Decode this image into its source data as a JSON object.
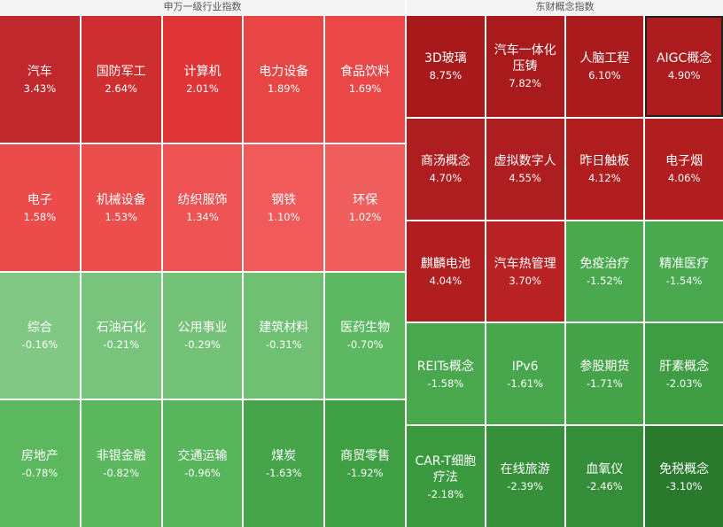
{
  "panels": [
    {
      "title": "申万一级行业指数",
      "columns": 5,
      "tiles": [
        {
          "name": "汽车",
          "change": "3.43%",
          "color": "#c0282d"
        },
        {
          "name": "国防军工",
          "change": "2.64%",
          "color": "#cf2e30"
        },
        {
          "name": "计算机",
          "change": "2.01%",
          "color": "#e03536"
        },
        {
          "name": "电力设备",
          "change": "1.89%",
          "color": "#e84545"
        },
        {
          "name": "食品饮料",
          "change": "1.69%",
          "color": "#ea4848"
        },
        {
          "name": "电子",
          "change": "1.58%",
          "color": "#ec4b4b"
        },
        {
          "name": "机械设备",
          "change": "1.53%",
          "color": "#ec4d4d"
        },
        {
          "name": "纺织服饰",
          "change": "1.34%",
          "color": "#ee5252"
        },
        {
          "name": "钢铁",
          "change": "1.10%",
          "color": "#f05a5a"
        },
        {
          "name": "环保",
          "change": "1.02%",
          "color": "#f05e5e"
        },
        {
          "name": "综合",
          "change": "-0.16%",
          "color": "#80c884"
        },
        {
          "name": "石油石化",
          "change": "-0.21%",
          "color": "#79c47d"
        },
        {
          "name": "公用事业",
          "change": "-0.29%",
          "color": "#73c277"
        },
        {
          "name": "建筑材料",
          "change": "-0.31%",
          "color": "#70c074"
        },
        {
          "name": "医药生物",
          "change": "-0.70%",
          "color": "#5db961"
        },
        {
          "name": "房地产",
          "change": "-0.78%",
          "color": "#5bb85f"
        },
        {
          "name": "非银金融",
          "change": "-0.82%",
          "color": "#5ab75e"
        },
        {
          "name": "交通运输",
          "change": "-0.96%",
          "color": "#57b55b"
        },
        {
          "name": "煤炭",
          "change": "-1.63%",
          "color": "#46a54a"
        },
        {
          "name": "商贸零售",
          "change": "-1.92%",
          "color": "#3f9f43"
        }
      ]
    },
    {
      "title": "东财概念指数",
      "columns": 4,
      "tiles": [
        {
          "name": "3D玻璃",
          "change": "8.75%",
          "color": "#a8191b"
        },
        {
          "name": "汽车一体化压铸",
          "change": "7.82%",
          "color": "#a81a1c"
        },
        {
          "name": "人脑工程",
          "change": "6.10%",
          "color": "#aa1b1d"
        },
        {
          "name": "AIGC概念",
          "change": "4.90%",
          "color": "#ac1c1e"
        },
        {
          "name": "商汤概念",
          "change": "4.70%",
          "color": "#ae1d1f"
        },
        {
          "name": "虚拟数字人",
          "change": "4.55%",
          "color": "#ae1d1f"
        },
        {
          "name": "昨日触板",
          "change": "4.12%",
          "color": "#b01e20"
        },
        {
          "name": "电子烟",
          "change": "4.06%",
          "color": "#b01e20"
        },
        {
          "name": "麒麟电池",
          "change": "4.04%",
          "color": "#b01e20"
        },
        {
          "name": "汽车热管理",
          "change": "3.70%",
          "color": "#b82224"
        },
        {
          "name": "免疫治疗",
          "change": "-1.52%",
          "color": "#4aa84e"
        },
        {
          "name": "精准医疗",
          "change": "-1.54%",
          "color": "#4aa84e"
        },
        {
          "name": "REITs概念",
          "change": "-1.58%",
          "color": "#49a74d"
        },
        {
          "name": "IPv6",
          "change": "-1.61%",
          "color": "#48a64c"
        },
        {
          "name": "参股期货",
          "change": "-1.71%",
          "color": "#45a449"
        },
        {
          "name": "肝素概念",
          "change": "-2.03%",
          "color": "#3e9c42"
        },
        {
          "name": "CAR-T细胞疗法",
          "change": "-2.18%",
          "color": "#3a983e"
        },
        {
          "name": "在线旅游",
          "change": "-2.39%",
          "color": "#36903a"
        },
        {
          "name": "血氧仪",
          "change": "-2.46%",
          "color": "#348d38"
        },
        {
          "name": "免税概念",
          "change": "-3.10%",
          "color": "#2a7a2e"
        }
      ]
    }
  ]
}
